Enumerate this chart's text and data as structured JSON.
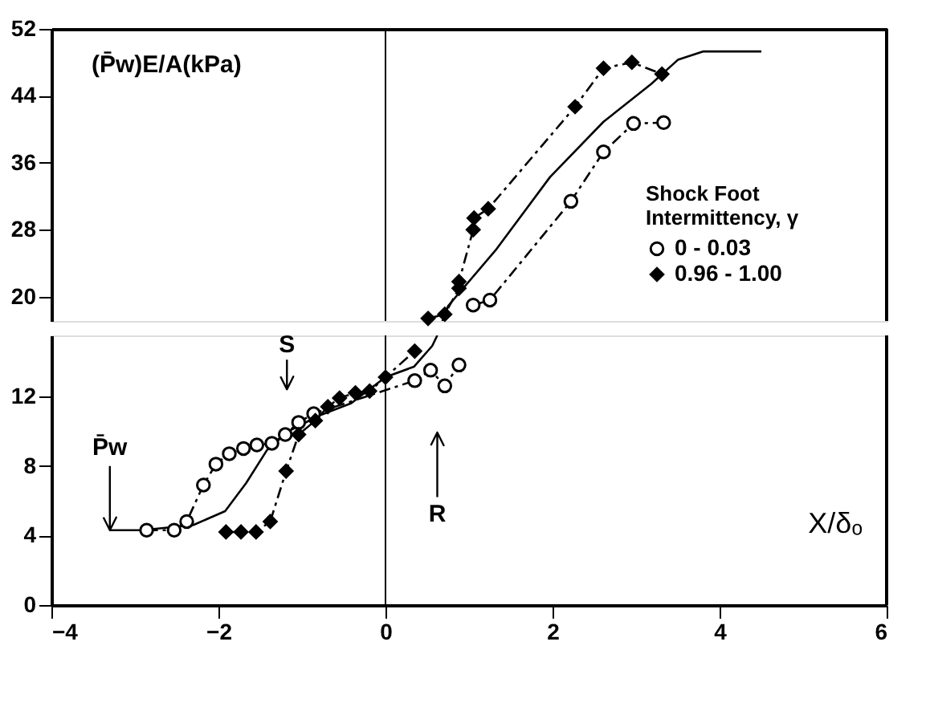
{
  "chart_data": [
    {
      "type": "line",
      "ylabel": "(P̄w)E/A(kPa)",
      "legend_title": "Shock Foot Intermittency, γ",
      "xlim": [
        -4,
        6
      ],
      "xticks": [
        -4,
        -2,
        0,
        2,
        4,
        6
      ],
      "ylim": [
        17.1,
        52
      ],
      "yticks": [
        20,
        28,
        36,
        44,
        52
      ],
      "tick_labels": "y",
      "legend": "right",
      "series": [
        {
          "name": "0 - 0.03",
          "color": "#000000",
          "marker": "circle",
          "line_style": "dashed",
          "x": [
            1.05,
            1.25,
            2.22,
            2.61,
            2.97,
            3.33
          ],
          "values": [
            19.0,
            19.6,
            31.4,
            37.3,
            40.7,
            40.8
          ]
        },
        {
          "name": "0.96 - 1.00",
          "color": "#000000",
          "marker": "diamond",
          "line_style": "dashed",
          "x": [
            0.51,
            0.71,
            0.88,
            0.88,
            1.05,
            1.06,
            1.23,
            2.27,
            2.61,
            2.95,
            3.31
          ],
          "values": [
            17.4,
            17.9,
            21.0,
            21.8,
            28.0,
            29.4,
            30.5,
            42.7,
            47.3,
            48.0,
            46.6
          ]
        },
        {
          "color": "#000000",
          "marker": "none",
          "line_style": "solid",
          "x": [
            0.68,
            0.75,
            1.33,
            1.97,
            2.61,
            3.18,
            3.5,
            3.8,
            4.5
          ],
          "values": [
            17.1,
            18.9,
            25.7,
            34.3,
            40.9,
            45.4,
            48.3,
            49.3,
            49.3
          ]
        }
      ],
      "ref_lines": [
        {
          "axis": "x",
          "value": 0,
          "color": "#000000",
          "line_style": "solid"
        }
      ]
    },
    {
      "type": "line",
      "xlabel": "X/δₒ",
      "xlim": [
        -4,
        6
      ],
      "xticks": [
        -4,
        -2,
        0,
        2,
        4,
        6
      ],
      "ylim": [
        0,
        15.5
      ],
      "yticks": [
        0,
        4,
        8,
        12
      ],
      "series": [
        {
          "name": "0 - 0.03",
          "color": "#000000",
          "marker": "circle",
          "line_style": "dashed",
          "x": [
            -2.86,
            -2.53,
            -2.38,
            -2.18,
            -2.03,
            -1.87,
            -1.7,
            -1.54,
            -1.36,
            -1.2,
            -1.04,
            -0.86,
            0.35,
            0.54,
            0.71,
            0.88
          ],
          "values": [
            4.3,
            4.3,
            4.8,
            6.9,
            8.1,
            8.7,
            9.0,
            9.2,
            9.3,
            9.8,
            10.5,
            11.0,
            12.9,
            13.5,
            12.6,
            13.8
          ]
        },
        {
          "name": "0.96 - 1.00",
          "color": "#000000",
          "marker": "diamond",
          "line_style": "dashed",
          "x": [
            -1.91,
            -1.73,
            -1.55,
            -1.38,
            -1.19,
            -1.04,
            -0.84,
            -0.69,
            -0.55,
            -0.36,
            -0.19,
            0.0,
            0.35
          ],
          "values": [
            4.2,
            4.2,
            4.2,
            4.8,
            7.7,
            9.8,
            10.6,
            11.4,
            11.9,
            12.2,
            12.3,
            13.1,
            14.6
          ]
        },
        {
          "color": "#000000",
          "marker": "none",
          "line_style": "solid",
          "x": [
            -3.3,
            -2.92,
            -2.3,
            -1.92,
            -1.67,
            -1.42,
            -1.16,
            -0.79,
            -0.41,
            0.0,
            0.34,
            0.56,
            0.62
          ],
          "values": [
            4.3,
            4.3,
            4.6,
            5.4,
            7.0,
            8.9,
            10.0,
            10.9,
            11.6,
            13.1,
            13.7,
            14.9,
            15.5
          ]
        }
      ],
      "ref_lines": [
        {
          "axis": "x",
          "value": 0,
          "color": "#000000",
          "line_style": "solid"
        }
      ],
      "annotations": [
        "S",
        "R",
        {
          "text": "P̄w",
          "x": -3.3,
          "y": 4.3
        }
      ]
    }
  ]
}
